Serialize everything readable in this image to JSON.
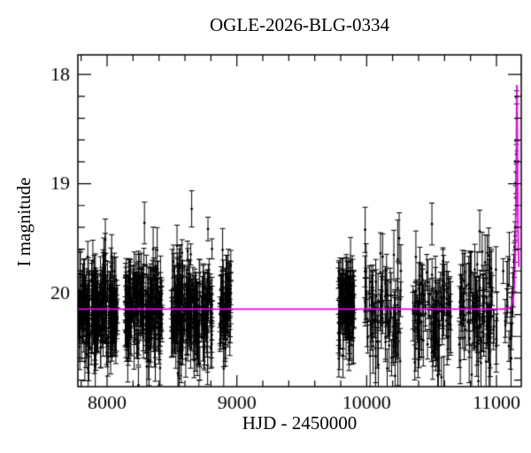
{
  "figure": {
    "title": "OGLE-2026-BLG-0334",
    "xlabel": "HJD - 2450000",
    "ylabel": "I magnitude"
  },
  "chart_data": {
    "type": "scatter",
    "subtype": "microlensing-light-curve-with-error-bars-and-model",
    "title": "OGLE-2026-BLG-0334",
    "xlabel": "HJD - 2450000",
    "ylabel": "I magnitude",
    "xlim": [
      7775,
      11191
    ],
    "ylim": [
      20.86,
      17.82
    ],
    "y_axis_inverted_magnitude": true,
    "xticks_major": [
      8000,
      9000,
      10000,
      11000
    ],
    "xtick_minor_step": 200,
    "yticks_major": [
      18,
      19,
      20
    ],
    "ytick_minor_step": 0.2,
    "grid": false,
    "legend": null,
    "colors": {
      "data_points": "#000000",
      "model_curve": "#ee00ee",
      "axes": "#000000",
      "background": "#ffffff"
    },
    "baseline_mag": 20.15,
    "peak_mag": 18.09,
    "peak_time_hjd": 11157,
    "model": {
      "type": "paczynski_point_lens",
      "t0": 11157,
      "tE": 17,
      "u0": 0.152,
      "baseline_mag": 20.15,
      "curve_drawn_from": 7775,
      "curve_drawn_to": 11172
    },
    "observing_seasons": [
      {
        "hjd_start": 7775,
        "hjd_end": 8085,
        "n_points": 235,
        "mag_mean": 20.16,
        "mag_sigma": 0.21,
        "err_scale": 1.0
      },
      {
        "hjd_start": 8140,
        "hjd_end": 8425,
        "n_points": 215,
        "mag_mean": 20.16,
        "mag_sigma": 0.21,
        "err_scale": 1.0
      },
      {
        "hjd_start": 8495,
        "hjd_end": 8812,
        "n_points": 225,
        "mag_mean": 20.16,
        "mag_sigma": 0.21,
        "err_scale": 1.0
      },
      {
        "hjd_start": 8868,
        "hjd_end": 8955,
        "n_points": 65,
        "mag_mean": 20.17,
        "mag_sigma": 0.22,
        "err_scale": 1.0
      },
      {
        "hjd_start": 9782,
        "hjd_end": 9903,
        "n_points": 115,
        "mag_mean": 20.16,
        "mag_sigma": 0.21,
        "err_scale": 1.0
      },
      {
        "hjd_start": 9985,
        "hjd_end": 10265,
        "n_points": 85,
        "mag_mean": 20.17,
        "mag_sigma": 0.24,
        "err_scale": 1.2
      },
      {
        "hjd_start": 10355,
        "hjd_end": 10650,
        "n_points": 100,
        "mag_mean": 20.16,
        "mag_sigma": 0.23,
        "err_scale": 1.2
      },
      {
        "hjd_start": 10710,
        "hjd_end": 11005,
        "n_points": 105,
        "mag_mean": 20.16,
        "mag_sigma": 0.23,
        "err_scale": 1.2
      },
      {
        "hjd_start": 11050,
        "hjd_end": 11105,
        "n_points": 8,
        "mag_mean": 20.18,
        "mag_sigma": 0.22,
        "err_scale": 1.2
      }
    ],
    "event_rise_points": [
      [
        11108.0,
        20.42,
        0.28
      ],
      [
        11112.0,
        20.6,
        0.32
      ],
      [
        11116.0,
        20.28,
        0.24
      ],
      [
        11121.0,
        20.18,
        0.22
      ],
      [
        11126.0,
        20.02,
        0.2
      ],
      [
        11130.0,
        19.95,
        0.18
      ],
      [
        11134.0,
        19.82,
        0.17
      ],
      [
        11138.0,
        19.7,
        0.16
      ],
      [
        11141.0,
        19.58,
        0.14
      ],
      [
        11144.0,
        19.48,
        0.13
      ],
      [
        11146.0,
        19.4,
        0.12
      ],
      [
        11149.0,
        19.13,
        0.11
      ],
      [
        11151.0,
        18.99,
        0.1
      ],
      [
        11152.5,
        18.9,
        0.1
      ],
      [
        11154.0,
        18.73,
        0.09
      ],
      [
        11155.5,
        18.21,
        0.06
      ],
      [
        11156.5,
        18.7,
        0.09
      ]
    ]
  }
}
